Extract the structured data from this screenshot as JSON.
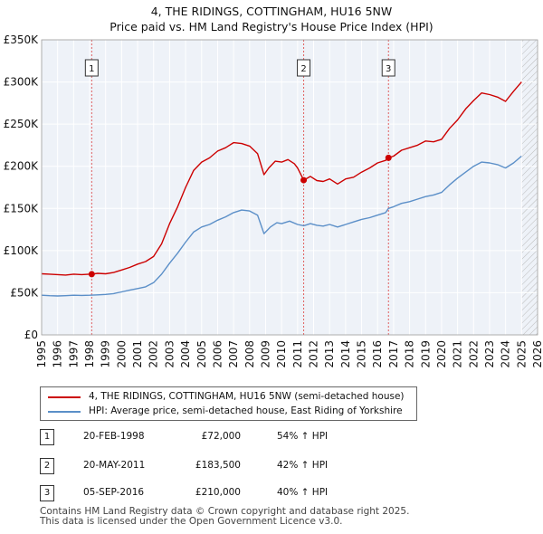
{
  "title": {
    "line1": "4, THE RIDINGS, COTTINGHAM, HU16 5NW",
    "line2": "Price paid vs. HM Land Registry's House Price Index (HPI)"
  },
  "chart_data": {
    "type": "line",
    "x_range": [
      1995,
      2026
    ],
    "ylim": [
      0,
      350000
    ],
    "y_ticks": [
      {
        "value": 0,
        "label": "£0"
      },
      {
        "value": 50000,
        "label": "£50K"
      },
      {
        "value": 100000,
        "label": "£100K"
      },
      {
        "value": 150000,
        "label": "£150K"
      },
      {
        "value": 200000,
        "label": "£200K"
      },
      {
        "value": 250000,
        "label": "£250K"
      },
      {
        "value": 300000,
        "label": "£300K"
      },
      {
        "value": 350000,
        "label": "£350K"
      }
    ],
    "x_ticks": [
      "1995",
      "1996",
      "1997",
      "1998",
      "1999",
      "2000",
      "2001",
      "2002",
      "2003",
      "2004",
      "2005",
      "2006",
      "2007",
      "2008",
      "2009",
      "2010",
      "2011",
      "2012",
      "2013",
      "2014",
      "2015",
      "2016",
      "2017",
      "2018",
      "2019",
      "2020",
      "2021",
      "2022",
      "2023",
      "2024",
      "2025",
      "2026"
    ],
    "hatch_after": 2025.0,
    "series": [
      {
        "name": "4, THE RIDINGS, COTTINGHAM, HU16 5NW (semi-detached house)",
        "color": "#cc0000",
        "points": [
          [
            1995.0,
            72500
          ],
          [
            1995.5,
            72000
          ],
          [
            1996.0,
            71500
          ],
          [
            1996.5,
            71000
          ],
          [
            1997.0,
            72000
          ],
          [
            1997.5,
            71500
          ],
          [
            1998.0,
            72000
          ],
          [
            1998.13,
            72000
          ],
          [
            1998.5,
            73000
          ],
          [
            1999.0,
            72500
          ],
          [
            1999.5,
            74000
          ],
          [
            2000.0,
            77000
          ],
          [
            2000.5,
            80000
          ],
          [
            2001.0,
            84000
          ],
          [
            2001.5,
            87000
          ],
          [
            2002.0,
            93000
          ],
          [
            2002.5,
            108000
          ],
          [
            2003.0,
            132000
          ],
          [
            2003.5,
            152000
          ],
          [
            2004.0,
            175000
          ],
          [
            2004.5,
            195000
          ],
          [
            2005.0,
            205000
          ],
          [
            2005.5,
            210000
          ],
          [
            2006.0,
            218000
          ],
          [
            2006.5,
            222000
          ],
          [
            2007.0,
            228000
          ],
          [
            2007.5,
            227000
          ],
          [
            2008.0,
            224000
          ],
          [
            2008.5,
            215000
          ],
          [
            2008.9,
            190000
          ],
          [
            2009.2,
            198000
          ],
          [
            2009.6,
            206000
          ],
          [
            2010.0,
            205000
          ],
          [
            2010.4,
            208000
          ],
          [
            2010.8,
            203000
          ],
          [
            2011.0,
            198000
          ],
          [
            2011.38,
            183500
          ],
          [
            2011.8,
            188000
          ],
          [
            2012.2,
            183000
          ],
          [
            2012.6,
            182000
          ],
          [
            2013.0,
            185000
          ],
          [
            2013.5,
            179000
          ],
          [
            2014.0,
            185000
          ],
          [
            2014.5,
            187000
          ],
          [
            2015.0,
            193000
          ],
          [
            2015.5,
            198000
          ],
          [
            2016.0,
            204000
          ],
          [
            2016.5,
            207000
          ],
          [
            2016.68,
            210000
          ],
          [
            2017.0,
            212000
          ],
          [
            2017.5,
            219000
          ],
          [
            2018.0,
            222000
          ],
          [
            2018.5,
            225000
          ],
          [
            2019.0,
            230000
          ],
          [
            2019.5,
            229000
          ],
          [
            2020.0,
            232000
          ],
          [
            2020.5,
            245000
          ],
          [
            2021.0,
            255000
          ],
          [
            2021.5,
            268000
          ],
          [
            2022.0,
            278000
          ],
          [
            2022.5,
            287000
          ],
          [
            2023.0,
            285000
          ],
          [
            2023.5,
            282000
          ],
          [
            2024.0,
            277000
          ],
          [
            2024.5,
            289000
          ],
          [
            2025.0,
            300000
          ]
        ]
      },
      {
        "name": "HPI: Average price, semi-detached house, East Riding of Yorkshire",
        "color": "#5b8fc8",
        "points": [
          [
            1995.0,
            47000
          ],
          [
            1995.5,
            46500
          ],
          [
            1996.0,
            46200
          ],
          [
            1996.5,
            46500
          ],
          [
            1997.0,
            47000
          ],
          [
            1997.5,
            46800
          ],
          [
            1998.0,
            47000
          ],
          [
            1998.5,
            47500
          ],
          [
            1999.0,
            48000
          ],
          [
            1999.5,
            49000
          ],
          [
            2000.0,
            51000
          ],
          [
            2000.5,
            53000
          ],
          [
            2001.0,
            55000
          ],
          [
            2001.5,
            57000
          ],
          [
            2002.0,
            62000
          ],
          [
            2002.5,
            72000
          ],
          [
            2003.0,
            85000
          ],
          [
            2003.5,
            97000
          ],
          [
            2004.0,
            110000
          ],
          [
            2004.5,
            122000
          ],
          [
            2005.0,
            128000
          ],
          [
            2005.5,
            131000
          ],
          [
            2006.0,
            136000
          ],
          [
            2006.5,
            140000
          ],
          [
            2007.0,
            145000
          ],
          [
            2007.5,
            148000
          ],
          [
            2008.0,
            147000
          ],
          [
            2008.5,
            142000
          ],
          [
            2008.9,
            120000
          ],
          [
            2009.3,
            128000
          ],
          [
            2009.7,
            133000
          ],
          [
            2010.0,
            132000
          ],
          [
            2010.5,
            135000
          ],
          [
            2011.0,
            131000
          ],
          [
            2011.38,
            129500
          ],
          [
            2011.8,
            132000
          ],
          [
            2012.2,
            130000
          ],
          [
            2012.6,
            129000
          ],
          [
            2013.0,
            131000
          ],
          [
            2013.5,
            128000
          ],
          [
            2014.0,
            131000
          ],
          [
            2014.5,
            134000
          ],
          [
            2015.0,
            137000
          ],
          [
            2015.5,
            139000
          ],
          [
            2016.0,
            142000
          ],
          [
            2016.5,
            145000
          ],
          [
            2016.68,
            150000
          ],
          [
            2017.0,
            152000
          ],
          [
            2017.5,
            156000
          ],
          [
            2018.0,
            158000
          ],
          [
            2018.5,
            161000
          ],
          [
            2019.0,
            164000
          ],
          [
            2019.5,
            166000
          ],
          [
            2020.0,
            169000
          ],
          [
            2020.5,
            178000
          ],
          [
            2021.0,
            186000
          ],
          [
            2021.5,
            193000
          ],
          [
            2022.0,
            200000
          ],
          [
            2022.5,
            205000
          ],
          [
            2023.0,
            204000
          ],
          [
            2023.5,
            202000
          ],
          [
            2024.0,
            198000
          ],
          [
            2024.5,
            204000
          ],
          [
            2025.0,
            212000
          ]
        ]
      }
    ],
    "sale_markers": [
      {
        "label": "1",
        "x": 1998.13,
        "y": 72000
      },
      {
        "label": "2",
        "x": 2011.38,
        "y": 183500
      },
      {
        "label": "3",
        "x": 2016.68,
        "y": 210000
      }
    ]
  },
  "legend": {
    "items": [
      {
        "label": "4, THE RIDINGS, COTTINGHAM, HU16 5NW (semi-detached house)",
        "color": "#cc0000"
      },
      {
        "label": "HPI: Average price, semi-detached house, East Riding of Yorkshire",
        "color": "#5b8fc8"
      }
    ]
  },
  "sales": [
    {
      "badge": "1",
      "date": "20-FEB-1998",
      "price": "£72,000",
      "hpi": "54% ↑ HPI"
    },
    {
      "badge": "2",
      "date": "20-MAY-2011",
      "price": "£183,500",
      "hpi": "42% ↑ HPI"
    },
    {
      "badge": "3",
      "date": "05-SEP-2016",
      "price": "£210,000",
      "hpi": "40% ↑ HPI"
    }
  ],
  "footer": {
    "line1": "Contains HM Land Registry data © Crown copyright and database right 2025.",
    "line2": "This data is licensed under the Open Government Licence v3.0."
  }
}
